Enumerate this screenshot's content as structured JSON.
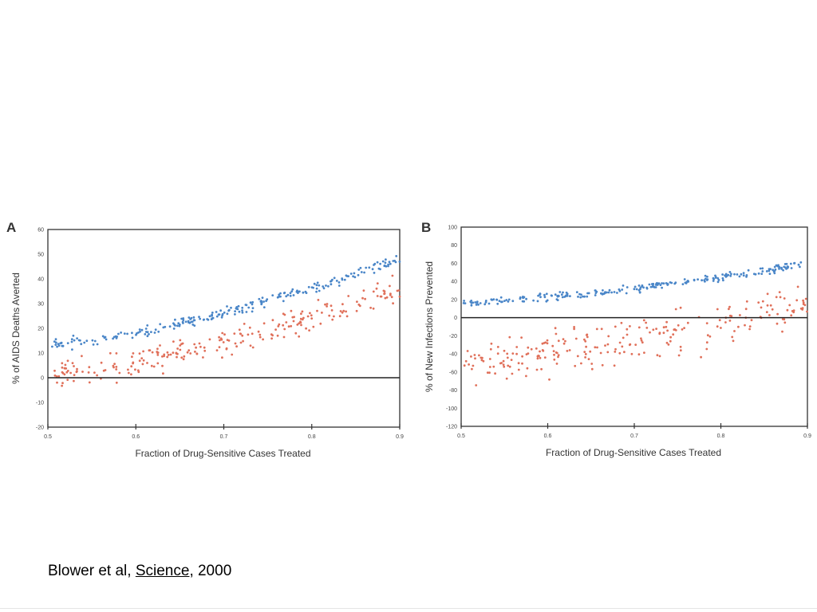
{
  "citation": {
    "authors": "Blower et al,",
    "journal": "Science",
    "year": ", 2000"
  },
  "colors": {
    "series_1": "#4a86c8",
    "series_2": "#e0705a",
    "axis": "#333333",
    "zero_line": "#222222"
  },
  "chart_data": [
    {
      "panel": "A",
      "type": "scatter",
      "title": "",
      "xlabel": "Fraction of Drug-Sensitive Cases Treated",
      "ylabel": "% of AIDS Deaths Averted",
      "xlim": [
        0.5,
        0.9
      ],
      "ylim": [
        -20,
        60
      ],
      "xticks": [
        "0.5",
        "0.6",
        "0.7",
        "0.8",
        "0.9"
      ],
      "yticks": [
        "60",
        "50",
        "40",
        "30",
        "20",
        "10",
        "0",
        "-10",
        "-20"
      ],
      "reference_line_y": 0,
      "grid": false,
      "series": [
        {
          "color": "#4a86c8",
          "x": [
            0.5,
            0.55,
            0.6,
            0.65,
            0.7,
            0.75,
            0.8,
            0.85,
            0.9
          ],
          "y": [
            13,
            15,
            18,
            22,
            26,
            31,
            36,
            42,
            48
          ],
          "spread": 3
        },
        {
          "color": "#e0705a",
          "x": [
            0.5,
            0.55,
            0.6,
            0.65,
            0.7,
            0.75,
            0.8,
            0.85,
            0.9
          ],
          "y": [
            1,
            3,
            6,
            10,
            15,
            19,
            24,
            30,
            36
          ],
          "spread": 9
        }
      ]
    },
    {
      "panel": "B",
      "type": "scatter",
      "title": "",
      "xlabel": "Fraction of Drug-Sensitive Cases Treated",
      "ylabel": "% of New Infections Prevented",
      "xlim": [
        0.5,
        0.9
      ],
      "ylim": [
        -120,
        100
      ],
      "xticks": [
        "0.5",
        "0.6",
        "0.7",
        "0.8",
        "0.9"
      ],
      "yticks": [
        "100",
        "80",
        "60",
        "40",
        "20",
        "0",
        "-20",
        "-40",
        "-60",
        "-80",
        "-100",
        "-120"
      ],
      "reference_line_y": 0,
      "grid": false,
      "series": [
        {
          "color": "#4a86c8",
          "x": [
            0.5,
            0.55,
            0.6,
            0.65,
            0.7,
            0.75,
            0.8,
            0.85,
            0.9
          ],
          "y": [
            16,
            19,
            23,
            27,
            32,
            38,
            45,
            52,
            60
          ],
          "spread": 6
        },
        {
          "color": "#e0705a",
          "x": [
            0.5,
            0.55,
            0.6,
            0.65,
            0.7,
            0.75,
            0.8,
            0.85,
            0.9
          ],
          "y": [
            -50,
            -45,
            -40,
            -33,
            -25,
            -15,
            -5,
            5,
            15
          ],
          "spread": 35
        }
      ]
    }
  ]
}
